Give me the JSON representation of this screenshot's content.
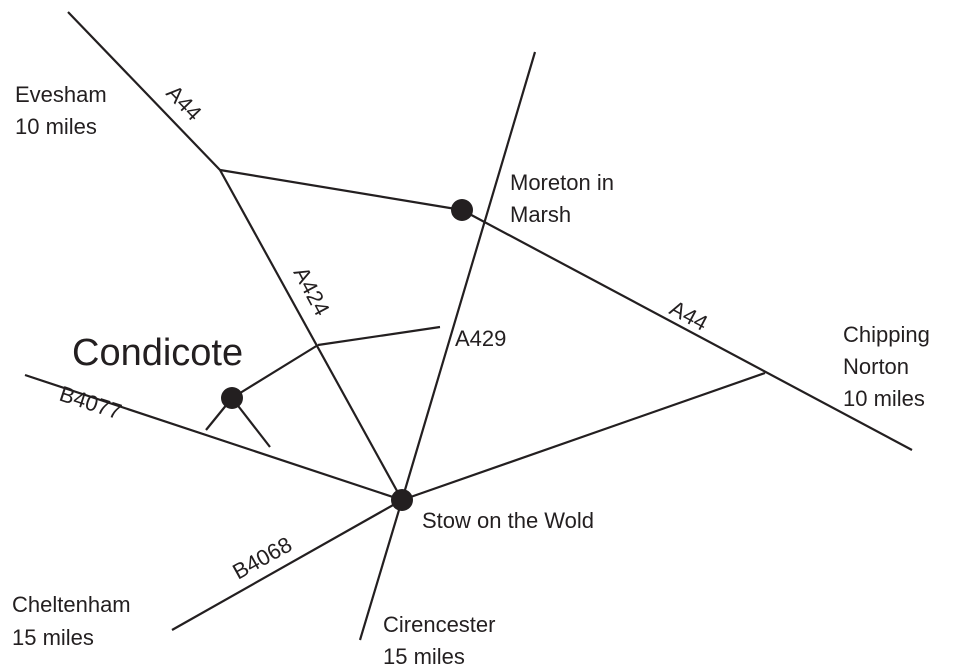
{
  "places": [
    {
      "lines": [
        "Evesham",
        "10 miles"
      ]
    },
    {
      "lines": [
        "Moreton in",
        "Marsh"
      ]
    },
    {
      "lines": [
        "Chipping",
        "Norton",
        "10 miles"
      ]
    },
    {
      "lines": [
        "Condicote"
      ]
    },
    {
      "lines": [
        "Stow on the Wold"
      ]
    },
    {
      "lines": [
        "Cheltenham",
        "15 miles"
      ]
    },
    {
      "lines": [
        "Cirencester",
        "15 miles"
      ]
    }
  ],
  "roads": [
    "A44",
    "A424",
    "A429",
    "A44",
    "B4077",
    "B4068"
  ]
}
